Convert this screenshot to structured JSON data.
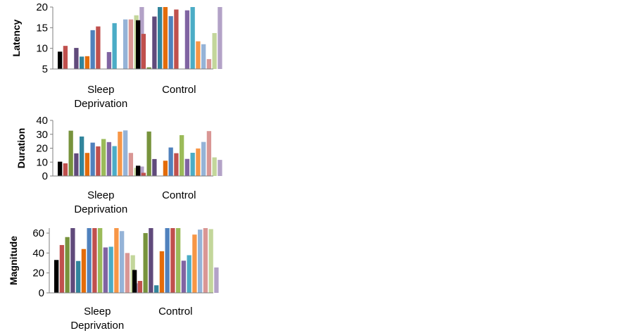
{
  "colors": [
    "#000000",
    "#c0504d",
    "#77933c",
    "#604a7b",
    "#31859c",
    "#e46c0a",
    "#4f81bd",
    "#c0504d",
    "#9bbb59",
    "#8064a2",
    "#4bacc6",
    "#f79646",
    "#95b3d7",
    "#d99694",
    "#c3d69b",
    "#b3a2c7"
  ],
  "chart_data": [
    {
      "type": "bar",
      "ylabel": "Latency",
      "ylim": [
        5,
        20
      ],
      "yticks": [
        5,
        10,
        15,
        20
      ],
      "categories": [
        "Sleep Deprivation",
        "Control"
      ],
      "category_lines": [
        [
          "Sleep",
          "Deprivation"
        ],
        [
          "Control"
        ]
      ],
      "values": [
        [
          9.2,
          10.6,
          5,
          10.1,
          8,
          8.1,
          14.4,
          15.3,
          5,
          9.1,
          16.1,
          5,
          17,
          17,
          18,
          20
        ],
        [
          16.8,
          13.5,
          5.4,
          17.7,
          20,
          20,
          17.8,
          19.4,
          5,
          19.2,
          20,
          11.7,
          11,
          7.4,
          13.7,
          20
        ]
      ]
    },
    {
      "type": "bar",
      "ylabel": "Duration",
      "ylim": [
        0,
        40
      ],
      "yticks": [
        0,
        10,
        20,
        30,
        40
      ],
      "categories": [
        "Sleep Deprivation",
        "Control"
      ],
      "category_lines": [
        [
          "Sleep",
          "Deprivation"
        ],
        [
          "Control"
        ]
      ],
      "values": [
        [
          10.3,
          9.1,
          32.6,
          16.3,
          28.4,
          16.6,
          24,
          21.3,
          26.6,
          24.4,
          21.5,
          31.9,
          32.8,
          16.6,
          5.9,
          6.8
        ],
        [
          7.4,
          2.3,
          32,
          12.2,
          0,
          11,
          20.5,
          16.4,
          29.4,
          12.3,
          16.7,
          19.8,
          24.5,
          32.3,
          13.4,
          11.6
        ]
      ]
    },
    {
      "type": "bar",
      "ylabel": "Magnitude",
      "ylim": [
        0,
        65
      ],
      "yticks": [
        0,
        20,
        40,
        60
      ],
      "categories": [
        "Sleep Deprivation",
        "Control"
      ],
      "category_lines": [
        [
          "Sleep",
          "Deprivation"
        ],
        [
          "Control"
        ]
      ],
      "values": [
        [
          33,
          48,
          56,
          65,
          32,
          44,
          65,
          65,
          65,
          45.6,
          46.3,
          65,
          62,
          40,
          37.8,
          9.6
        ],
        [
          23,
          12,
          60,
          65,
          7.6,
          41.8,
          65,
          65,
          65,
          32.3,
          37.8,
          58.5,
          63.5,
          65,
          64,
          25.5
        ]
      ]
    }
  ]
}
